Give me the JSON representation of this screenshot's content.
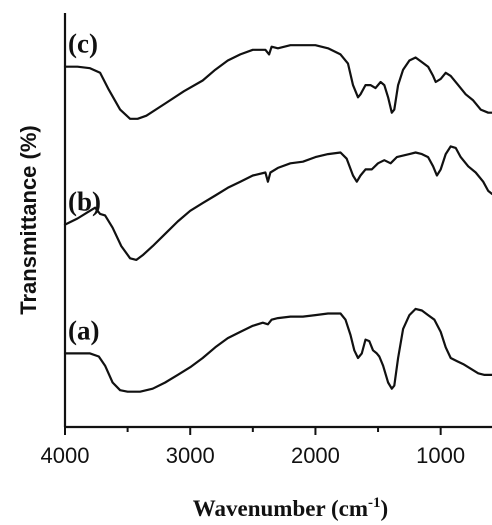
{
  "chart_data": {
    "type": "line",
    "title": "",
    "xlabel_main": "Wavenumber (cm",
    "xlabel_sup": "-1",
    "xlabel_close": ")",
    "ylabel": "Transmittance (%)",
    "xlim": [
      4000,
      590
    ],
    "x_reversed": true,
    "xticks": [
      4000,
      3000,
      2000,
      1000
    ],
    "xtick_labels": [
      "4000",
      "3000",
      "2000",
      "1000"
    ],
    "yticks_shown": false,
    "legend": "none",
    "grid": false,
    "series": [
      {
        "label": "(c)",
        "points": [
          [
            4000,
            100
          ],
          [
            3900,
            100
          ],
          [
            3800,
            99
          ],
          [
            3720,
            96
          ],
          [
            3650,
            85
          ],
          [
            3560,
            72
          ],
          [
            3480,
            66
          ],
          [
            3420,
            66
          ],
          [
            3350,
            68
          ],
          [
            3200,
            76
          ],
          [
            3050,
            84
          ],
          [
            2900,
            91
          ],
          [
            2800,
            98
          ],
          [
            2700,
            104
          ],
          [
            2600,
            108
          ],
          [
            2500,
            111
          ],
          [
            2400,
            111
          ],
          [
            2370,
            108
          ],
          [
            2350,
            113
          ],
          [
            2300,
            112
          ],
          [
            2200,
            114
          ],
          [
            2100,
            114
          ],
          [
            2000,
            114
          ],
          [
            1900,
            112
          ],
          [
            1800,
            108
          ],
          [
            1740,
            102
          ],
          [
            1700,
            88
          ],
          [
            1660,
            80
          ],
          [
            1640,
            82
          ],
          [
            1600,
            88
          ],
          [
            1560,
            88
          ],
          [
            1520,
            86
          ],
          [
            1480,
            90
          ],
          [
            1450,
            88
          ],
          [
            1420,
            80
          ],
          [
            1390,
            70
          ],
          [
            1370,
            72
          ],
          [
            1340,
            88
          ],
          [
            1300,
            98
          ],
          [
            1250,
            104
          ],
          [
            1200,
            106
          ],
          [
            1150,
            103
          ],
          [
            1100,
            100
          ],
          [
            1060,
            94
          ],
          [
            1040,
            90
          ],
          [
            1000,
            92
          ],
          [
            960,
            96
          ],
          [
            920,
            94
          ],
          [
            860,
            88
          ],
          [
            800,
            82
          ],
          [
            740,
            78
          ],
          [
            680,
            72
          ],
          [
            620,
            70
          ],
          [
            590,
            70
          ]
        ]
      },
      {
        "label": "(b)",
        "points": [
          [
            4000,
            40
          ],
          [
            3900,
            44
          ],
          [
            3820,
            48
          ],
          [
            3760,
            51
          ],
          [
            3720,
            47
          ],
          [
            3680,
            46
          ],
          [
            3620,
            38
          ],
          [
            3550,
            26
          ],
          [
            3480,
            18
          ],
          [
            3430,
            17
          ],
          [
            3380,
            20
          ],
          [
            3300,
            26
          ],
          [
            3200,
            34
          ],
          [
            3100,
            42
          ],
          [
            3000,
            49
          ],
          [
            2900,
            54
          ],
          [
            2800,
            59
          ],
          [
            2700,
            64
          ],
          [
            2600,
            68
          ],
          [
            2500,
            72
          ],
          [
            2400,
            74
          ],
          [
            2380,
            68
          ],
          [
            2360,
            74
          ],
          [
            2300,
            77
          ],
          [
            2200,
            80
          ],
          [
            2100,
            81
          ],
          [
            2000,
            84
          ],
          [
            1900,
            86
          ],
          [
            1800,
            87
          ],
          [
            1750,
            83
          ],
          [
            1700,
            72
          ],
          [
            1670,
            68
          ],
          [
            1640,
            72
          ],
          [
            1600,
            76
          ],
          [
            1550,
            76
          ],
          [
            1500,
            80
          ],
          [
            1450,
            82
          ],
          [
            1400,
            80
          ],
          [
            1350,
            84
          ],
          [
            1300,
            85
          ],
          [
            1250,
            86
          ],
          [
            1200,
            87
          ],
          [
            1150,
            86
          ],
          [
            1100,
            84
          ],
          [
            1060,
            78
          ],
          [
            1030,
            72
          ],
          [
            1000,
            76
          ],
          [
            960,
            86
          ],
          [
            920,
            91
          ],
          [
            880,
            90
          ],
          [
            840,
            84
          ],
          [
            780,
            78
          ],
          [
            720,
            74
          ],
          [
            660,
            68
          ],
          [
            620,
            62
          ],
          [
            590,
            60
          ]
        ]
      },
      {
        "label": "(a)",
        "points": [
          [
            4000,
            8
          ],
          [
            3900,
            8
          ],
          [
            3800,
            8
          ],
          [
            3730,
            6
          ],
          [
            3680,
            0
          ],
          [
            3620,
            -11
          ],
          [
            3560,
            -16
          ],
          [
            3500,
            -17
          ],
          [
            3400,
            -17
          ],
          [
            3300,
            -15
          ],
          [
            3200,
            -11
          ],
          [
            3100,
            -6
          ],
          [
            3000,
            -1
          ],
          [
            2900,
            5
          ],
          [
            2800,
            12
          ],
          [
            2700,
            18
          ],
          [
            2600,
            22
          ],
          [
            2500,
            26
          ],
          [
            2420,
            28
          ],
          [
            2380,
            27
          ],
          [
            2350,
            30
          ],
          [
            2300,
            31
          ],
          [
            2200,
            32
          ],
          [
            2100,
            32
          ],
          [
            2000,
            33
          ],
          [
            1900,
            34
          ],
          [
            1800,
            34
          ],
          [
            1760,
            30
          ],
          [
            1720,
            20
          ],
          [
            1690,
            10
          ],
          [
            1660,
            5
          ],
          [
            1630,
            8
          ],
          [
            1600,
            17
          ],
          [
            1570,
            16
          ],
          [
            1540,
            10
          ],
          [
            1510,
            8
          ],
          [
            1490,
            6
          ],
          [
            1460,
            0
          ],
          [
            1420,
            -11
          ],
          [
            1390,
            -15
          ],
          [
            1370,
            -13
          ],
          [
            1340,
            5
          ],
          [
            1300,
            24
          ],
          [
            1250,
            33
          ],
          [
            1200,
            37
          ],
          [
            1150,
            36
          ],
          [
            1100,
            33
          ],
          [
            1050,
            30
          ],
          [
            1000,
            22
          ],
          [
            960,
            12
          ],
          [
            920,
            5
          ],
          [
            870,
            3
          ],
          [
            820,
            1
          ],
          [
            760,
            -2
          ],
          [
            700,
            -5
          ],
          [
            650,
            -6
          ],
          [
            620,
            -6
          ],
          [
            590,
            -6
          ]
        ]
      }
    ]
  }
}
